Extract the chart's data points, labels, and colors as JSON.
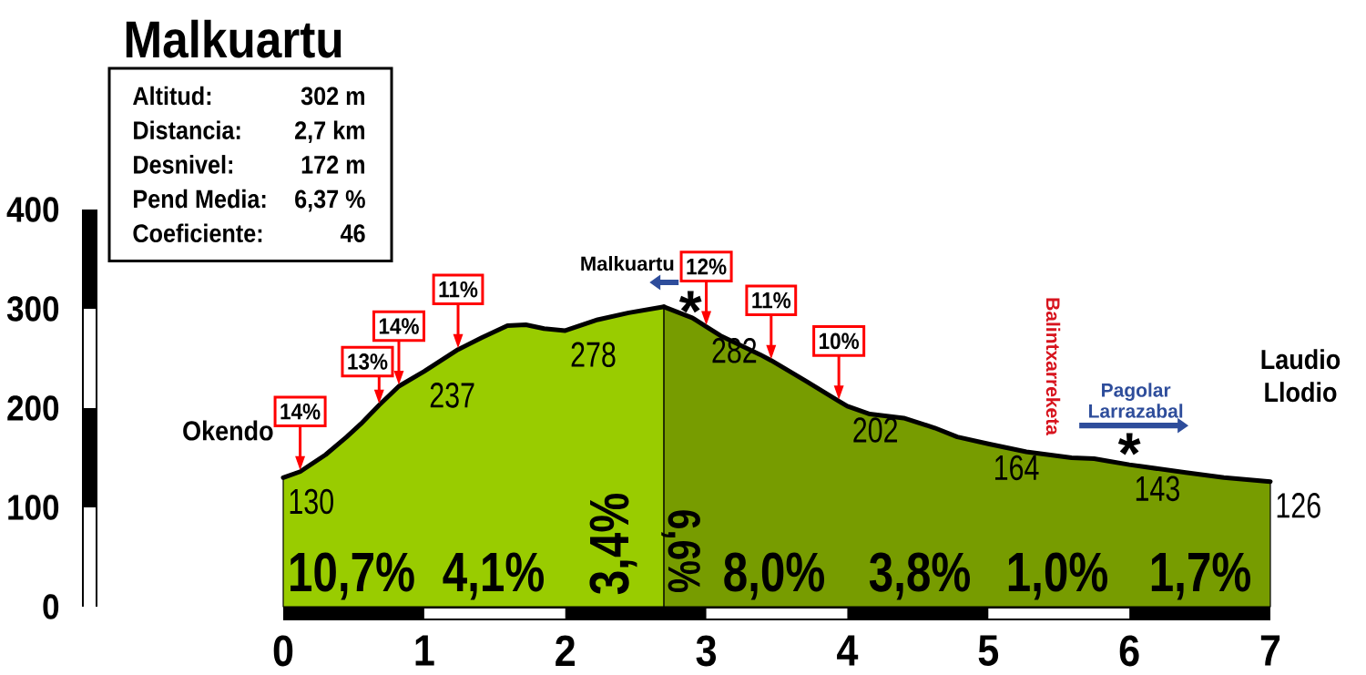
{
  "chart_data": {
    "type": "area",
    "title": "Malkuartu",
    "xlim": [
      0,
      7
    ],
    "xticks": [
      0,
      1,
      2,
      3,
      4,
      5,
      6,
      7
    ],
    "ylim": [
      0,
      400
    ],
    "yticks": [
      0,
      100,
      200,
      300,
      400
    ],
    "series": [
      {
        "color": "#99cc00",
        "x": [
          0,
          0.12,
          0.3,
          0.45,
          0.55,
          0.68,
          0.82,
          1,
          1.24,
          1.41,
          1.59,
          1.72,
          1.85,
          2,
          2.23,
          2.45,
          2.7
        ],
        "values": [
          130,
          136,
          153,
          171,
          184,
          203,
          222,
          237,
          259,
          271,
          283,
          284,
          280,
          278,
          289,
          296,
          302
        ],
        "value_labels": [
          "130",
          null,
          null,
          null,
          null,
          null,
          null,
          "237",
          null,
          null,
          null,
          null,
          null,
          "278",
          null,
          null,
          null
        ]
      },
      {
        "color": "#779c00",
        "x": [
          2.7,
          2.9,
          3,
          3.1,
          3.38,
          3.46,
          3.71,
          3.94,
          4,
          4.16,
          4.4,
          4.62,
          4.78,
          5,
          5.27,
          5.59,
          5.75,
          6,
          6.4,
          6.67,
          7
        ],
        "values": [
          302,
          291,
          282,
          273,
          254,
          248,
          227,
          207,
          202,
          194,
          190,
          180,
          171,
          164,
          156,
          150,
          149,
          143,
          135,
          130,
          126
        ],
        "value_labels": [
          null,
          null,
          "282",
          null,
          null,
          null,
          null,
          null,
          "202",
          null,
          null,
          null,
          null,
          "164",
          null,
          null,
          null,
          "143",
          null,
          null,
          "126"
        ]
      }
    ],
    "annotations": [
      "Altitud:",
      "302 m",
      "Distancia:",
      "2,7 km",
      "Desnivel:",
      "172 m",
      "Pend Media:",
      "6,37 %",
      "Coeficiente:",
      "46",
      {
        "text": "Okendo",
        "x": 0,
        "y": 130
      },
      {
        "text": "14%",
        "x": 0.12,
        "y": 136
      },
      {
        "text": "13%",
        "x": 0.68,
        "y": 203
      },
      {
        "text": "14%",
        "x": 0.82,
        "y": 222
      },
      {
        "text": "11%",
        "x": 1.24,
        "y": 259
      },
      {
        "text": "Malkuartu",
        "x": 2.92,
        "y": 289
      },
      {
        "text": "*",
        "x": 2.92,
        "y": 289
      },
      {
        "text": "12%",
        "x": 3,
        "y": 282
      },
      {
        "text": "11%",
        "x": 3.46,
        "y": 248
      },
      {
        "text": "10%",
        "x": 3.94,
        "y": 207
      },
      {
        "text": "Balintxarreketa",
        "x": 5.46,
        "y": 152
      },
      {
        "text": "Pagolar Larrazabal",
        "x": 6,
        "y": 143
      },
      {
        "text": "*",
        "x": 6,
        "y": 143
      },
      {
        "text": "Laudio Llodio",
        "x": 7,
        "y": 126
      },
      "10,7%",
      "4,1%",
      "3,4%",
      "6,6%",
      "8,0%",
      "3,8%",
      "1,0%",
      "1,7%"
    ]
  }
}
